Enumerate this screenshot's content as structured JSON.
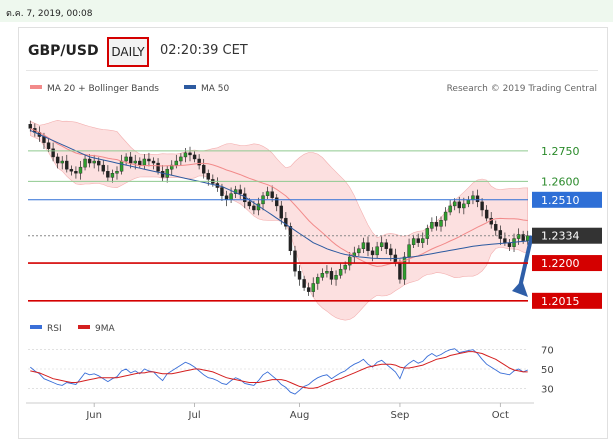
{
  "topbar": {
    "datetime": "ต.ค. 7, 2019, 00:08"
  },
  "header": {
    "pair": "GBP/USD",
    "timeframe": "DAILY",
    "time": "02:20:39 CET"
  },
  "legend": {
    "ma20_label": "MA 20 + Bollinger Bands",
    "ma20_color": "#f28a8a",
    "ma50_label": "MA 50",
    "ma50_color": "#2c5aa0",
    "credit": "Research © 2019 Trading Central"
  },
  "rsi_legend": {
    "rsi_label": "RSI",
    "rsi_color": "#3a6fd8",
    "ma9_label": "9MA",
    "ma9_color": "#d42020"
  },
  "chart_data": {
    "type": "candlestick",
    "x_labels": [
      "Jun",
      "Jul",
      "Aug",
      "Sep",
      "Oct"
    ],
    "y_range": [
      1.197,
      1.295
    ],
    "levels": [
      {
        "value": 1.275,
        "label": "1.2750",
        "style": "green-line"
      },
      {
        "value": 1.26,
        "label": "1.2600",
        "style": "green-line"
      },
      {
        "value": 1.251,
        "label": "1.2510",
        "style": "blue-box"
      },
      {
        "value": 1.2334,
        "label": "1.2334",
        "style": "current"
      },
      {
        "value": 1.22,
        "label": "1.2200",
        "style": "red-box"
      },
      {
        "value": 1.2015,
        "label": "1.2015",
        "style": "red-box"
      }
    ],
    "close": [
      1.286,
      1.284,
      1.282,
      1.279,
      1.276,
      1.272,
      1.269,
      1.27,
      1.266,
      1.265,
      1.264,
      1.267,
      1.271,
      1.269,
      1.27,
      1.268,
      1.265,
      1.262,
      1.264,
      1.265,
      1.27,
      1.272,
      1.269,
      1.27,
      1.268,
      1.271,
      1.27,
      1.269,
      1.265,
      1.262,
      1.266,
      1.268,
      1.27,
      1.272,
      1.274,
      1.273,
      1.271,
      1.268,
      1.264,
      1.261,
      1.259,
      1.257,
      1.253,
      1.251,
      1.254,
      1.256,
      1.254,
      1.25,
      1.248,
      1.246,
      1.249,
      1.253,
      1.255,
      1.252,
      1.248,
      1.242,
      1.238,
      1.226,
      1.216,
      1.212,
      1.208,
      1.206,
      1.21,
      1.213,
      1.215,
      1.216,
      1.212,
      1.214,
      1.217,
      1.219,
      1.223,
      1.225,
      1.227,
      1.23,
      1.226,
      1.224,
      1.228,
      1.23,
      1.227,
      1.224,
      1.22,
      1.212,
      1.223,
      1.229,
      1.232,
      1.23,
      1.232,
      1.237,
      1.24,
      1.238,
      1.241,
      1.245,
      1.248,
      1.25,
      1.247,
      1.249,
      1.251,
      1.253,
      1.25,
      1.246,
      1.242,
      1.239,
      1.236,
      1.232,
      1.23,
      1.228,
      1.232,
      1.234,
      1.231,
      1.2334
    ],
    "ma50": [
      1.285,
      1.284,
      1.283,
      1.282,
      1.281,
      1.28,
      1.279,
      1.278,
      1.277,
      1.276,
      1.275,
      1.274,
      1.273,
      1.272,
      1.2715,
      1.271,
      1.2705,
      1.27,
      1.2695,
      1.269,
      1.2685,
      1.268,
      1.2675,
      1.267,
      1.2665,
      1.266,
      1.2655,
      1.265,
      1.2645,
      1.264,
      1.2635,
      1.263,
      1.2625,
      1.262,
      1.2615,
      1.261,
      1.2605,
      1.26,
      1.2595,
      1.259,
      1.2585,
      1.258,
      1.2575,
      1.2565,
      1.2555,
      1.2545,
      1.2535,
      1.2525,
      1.251,
      1.2495,
      1.248,
      1.2465,
      1.245,
      1.2435,
      1.242,
      1.2405,
      1.239,
      1.2375,
      1.236,
      1.2345,
      1.233,
      1.2315,
      1.23,
      1.229,
      1.228,
      1.227,
      1.2262,
      1.2255,
      1.2248,
      1.2242,
      1.2238,
      1.2234,
      1.223,
      1.2228,
      1.2226,
      1.2224,
      1.2223,
      1.2222,
      1.2222,
      1.2222,
      1.2223,
      1.2224,
      1.2226,
      1.2228,
      1.2231,
      1.2234,
      1.2238,
      1.2242,
      1.2246,
      1.225,
      1.2254,
      1.2258,
      1.2262,
      1.2266,
      1.227,
      1.2274,
      1.2278,
      1.2282,
      1.2285,
      1.2288,
      1.229,
      1.2292,
      1.2294,
      1.2296,
      1.2298,
      1.23,
      1.2302,
      1.2304,
      1.2306,
      1.2308
    ],
    "rsi": {
      "levels": [
        70,
        50,
        30
      ],
      "rsi": [
        52,
        48,
        45,
        40,
        38,
        36,
        34,
        33,
        36,
        35,
        34,
        40,
        46,
        44,
        45,
        43,
        40,
        37,
        40,
        42,
        48,
        50,
        46,
        48,
        45,
        50,
        48,
        47,
        42,
        38,
        45,
        48,
        51,
        54,
        57,
        55,
        52,
        48,
        44,
        41,
        40,
        38,
        35,
        34,
        38,
        41,
        39,
        35,
        34,
        33,
        38,
        44,
        47,
        43,
        39,
        34,
        31,
        26,
        24,
        28,
        32,
        34,
        38,
        41,
        43,
        44,
        40,
        43,
        46,
        48,
        52,
        55,
        57,
        60,
        55,
        52,
        57,
        59,
        55,
        51,
        47,
        40,
        52,
        56,
        59,
        56,
        58,
        63,
        66,
        63,
        65,
        68,
        70,
        71,
        67,
        68,
        69,
        70,
        66,
        60,
        55,
        52,
        49,
        46,
        45,
        44,
        48,
        50,
        47,
        49
      ],
      "ma9": [
        48,
        47,
        46,
        44,
        42,
        40,
        39,
        38,
        37,
        36,
        36,
        37,
        38,
        39,
        40,
        41,
        41,
        41,
        41,
        41,
        42,
        43,
        44,
        45,
        46,
        46,
        47,
        47,
        46,
        45,
        45,
        45,
        46,
        47,
        48,
        49,
        50,
        50,
        49,
        48,
        47,
        45,
        43,
        41,
        40,
        39,
        38,
        37,
        36,
        36,
        36,
        37,
        38,
        39,
        39,
        39,
        38,
        36,
        34,
        32,
        31,
        30,
        30,
        31,
        33,
        35,
        37,
        39,
        40,
        42,
        44,
        46,
        48,
        50,
        52,
        53,
        54,
        55,
        55,
        55,
        54,
        52,
        51,
        51,
        52,
        53,
        54,
        56,
        58,
        60,
        61,
        62,
        64,
        65,
        66,
        67,
        68,
        68,
        67,
        66,
        64,
        62,
        60,
        57,
        54,
        51,
        49,
        48,
        47,
        47
      ]
    }
  }
}
